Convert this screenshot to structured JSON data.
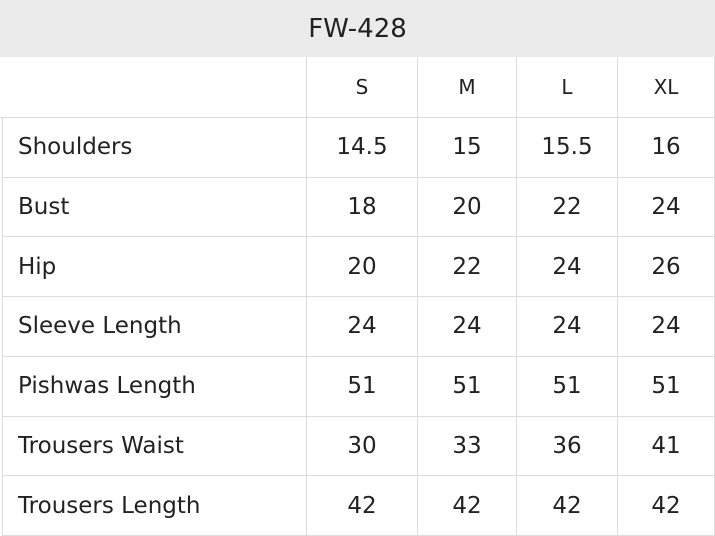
{
  "header": {
    "title": "FW-428"
  },
  "table": {
    "columns": [
      "S",
      "M",
      "L",
      "XL"
    ],
    "rows": [
      [
        "Shoulders",
        14.5,
        15,
        15.5,
        16
      ],
      [
        "Bust",
        18,
        20,
        22,
        24
      ],
      [
        "Hip",
        20,
        22,
        24,
        26
      ],
      [
        "Sleeve Length",
        24,
        24,
        24,
        24
      ],
      [
        "Pishwas Length",
        51,
        51,
        51,
        51
      ],
      [
        "Trousers Waist",
        30,
        33,
        36,
        41
      ],
      [
        "Trousers Length",
        42,
        42,
        42,
        42
      ]
    ]
  }
}
